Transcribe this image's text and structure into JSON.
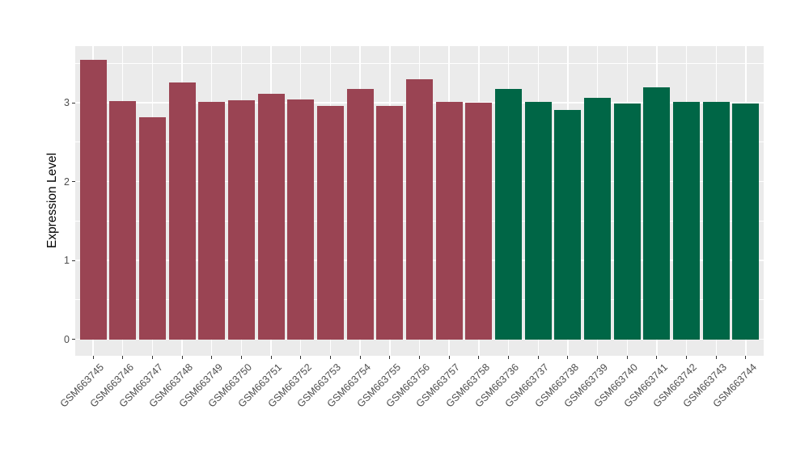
{
  "figure": {
    "background": "#FFFFFF",
    "panel_background": "#EBEBEB",
    "grid_color": "#FFFFFF",
    "axis_text_color": "#4D4D4D",
    "axis_title_color": "#000000",
    "tick_color": "#333333"
  },
  "chart_data": {
    "type": "bar",
    "title": "",
    "xlabel": "",
    "ylabel": "Expression Level",
    "ylim": [
      -0.21,
      3.72
    ],
    "yticks": [
      0,
      1,
      2,
      3
    ],
    "yticks_minor": [
      0.5,
      1.5,
      2.5,
      3.5
    ],
    "grid": true,
    "legend_position": "none",
    "group_colors": {
      "maroon": "#9A4453",
      "green": "#006646"
    },
    "bars": [
      {
        "label": "GSM663745",
        "value": 3.55,
        "group": "maroon"
      },
      {
        "label": "GSM663746",
        "value": 3.02,
        "group": "maroon"
      },
      {
        "label": "GSM663747",
        "value": 2.82,
        "group": "maroon"
      },
      {
        "label": "GSM663748",
        "value": 3.26,
        "group": "maroon"
      },
      {
        "label": "GSM663749",
        "value": 3.01,
        "group": "maroon"
      },
      {
        "label": "GSM663750",
        "value": 3.03,
        "group": "maroon"
      },
      {
        "label": "GSM663751",
        "value": 3.11,
        "group": "maroon"
      },
      {
        "label": "GSM663752",
        "value": 3.04,
        "group": "maroon"
      },
      {
        "label": "GSM663753",
        "value": 2.96,
        "group": "maroon"
      },
      {
        "label": "GSM663754",
        "value": 3.18,
        "group": "maroon"
      },
      {
        "label": "GSM663755",
        "value": 2.96,
        "group": "maroon"
      },
      {
        "label": "GSM663756",
        "value": 3.3,
        "group": "maroon"
      },
      {
        "label": "GSM663757",
        "value": 3.01,
        "group": "maroon"
      },
      {
        "label": "GSM663758",
        "value": 3.0,
        "group": "maroon"
      },
      {
        "label": "GSM663736",
        "value": 3.18,
        "group": "green"
      },
      {
        "label": "GSM663737",
        "value": 3.01,
        "group": "green"
      },
      {
        "label": "GSM663738",
        "value": 2.91,
        "group": "green"
      },
      {
        "label": "GSM663739",
        "value": 3.06,
        "group": "green"
      },
      {
        "label": "GSM663740",
        "value": 2.99,
        "group": "green"
      },
      {
        "label": "GSM663741",
        "value": 3.2,
        "group": "green"
      },
      {
        "label": "GSM663742",
        "value": 3.01,
        "group": "green"
      },
      {
        "label": "GSM663743",
        "value": 3.01,
        "group": "green"
      },
      {
        "label": "GSM663744",
        "value": 2.99,
        "group": "green"
      }
    ]
  }
}
